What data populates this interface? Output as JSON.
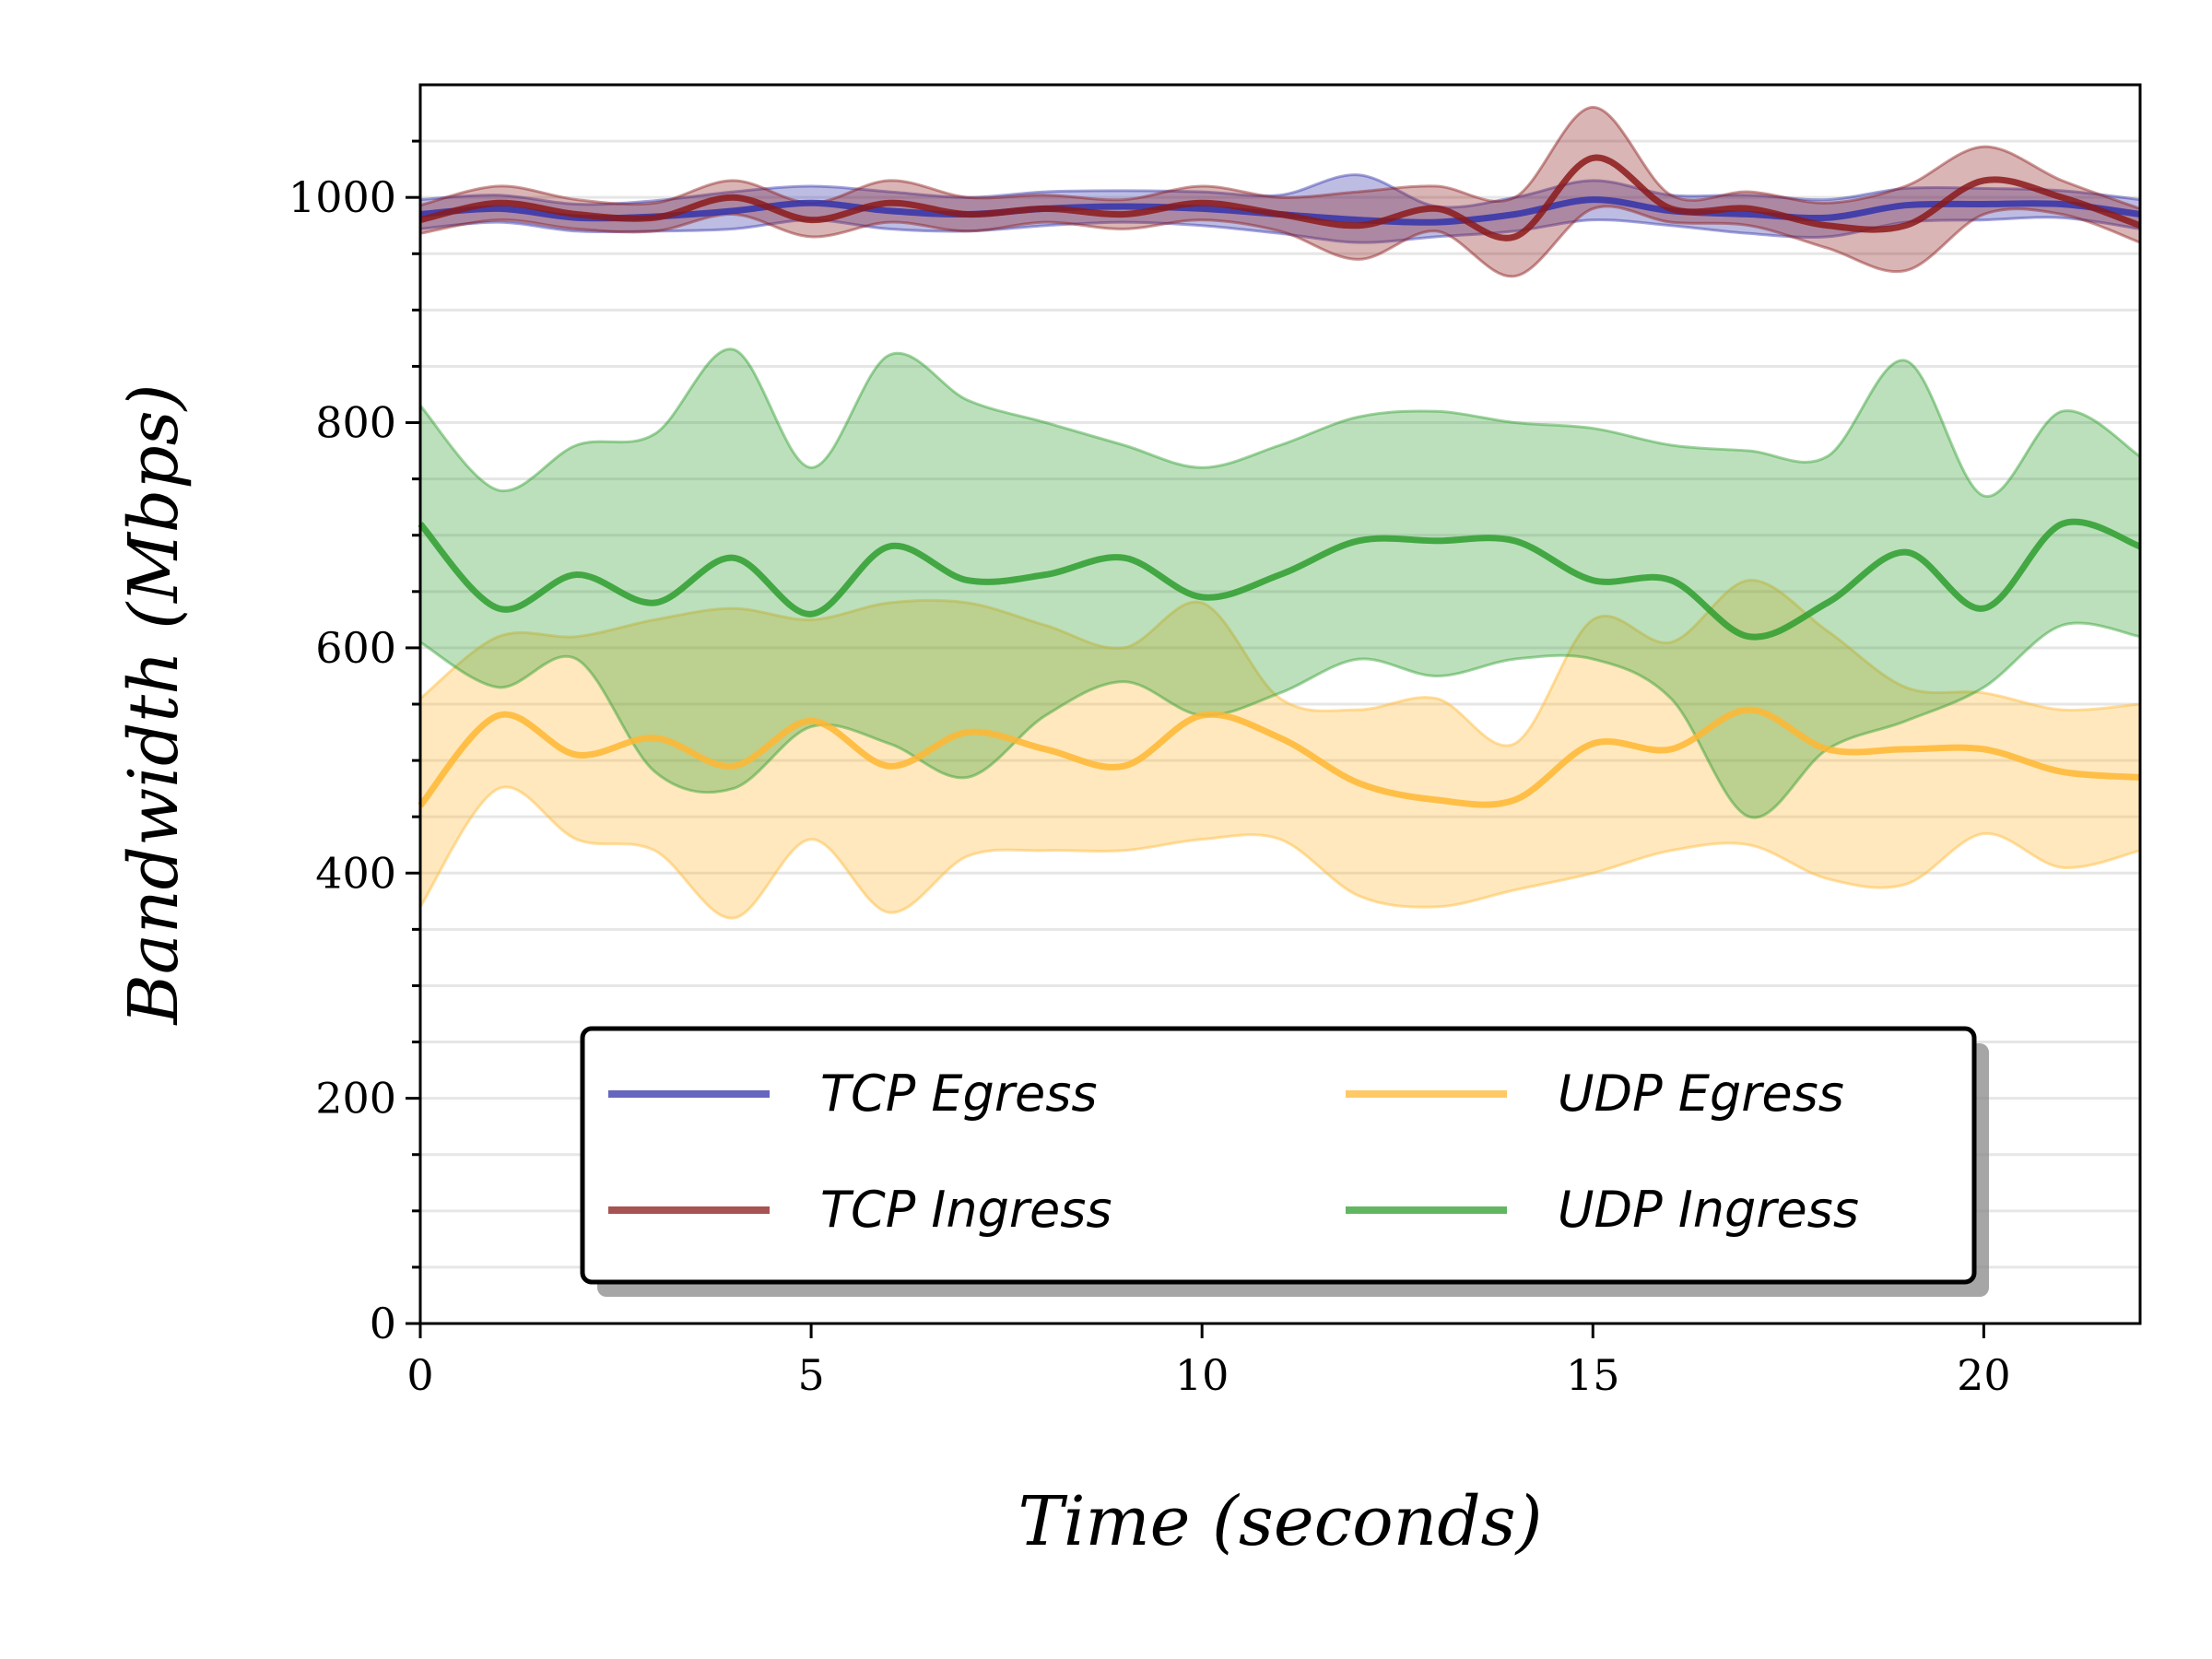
{
  "chart_data": {
    "type": "line",
    "title": "",
    "xlabel": "Time (seconds)",
    "ylabel": "Bandwidth (Mbps)",
    "xlim": [
      0,
      22
    ],
    "ylim": [
      0,
      1100
    ],
    "xticks": [
      0,
      5,
      10,
      15,
      20
    ],
    "yticks": [
      0,
      200,
      400,
      600,
      800,
      1000
    ],
    "grid": "horizontal minor grid every 50",
    "legend_position": "lower-center",
    "legend_columns": 2,
    "x": [
      0,
      1,
      2,
      3,
      4,
      5,
      6,
      7,
      8,
      9,
      10,
      11,
      12,
      13,
      14,
      15,
      16,
      17,
      18,
      19,
      20,
      21,
      22
    ],
    "series": [
      {
        "name": "TCP Egress",
        "color": "#3333aa",
        "values": [
          985,
          990,
          982,
          983,
          988,
          995,
          988,
          985,
          990,
          992,
          990,
          985,
          980,
          978,
          985,
          998,
          988,
          985,
          982,
          993,
          994,
          994,
          985
        ],
        "lower": [
          972,
          978,
          970,
          970,
          972,
          980,
          972,
          970,
          975,
          978,
          975,
          968,
          960,
          965,
          970,
          980,
          975,
          968,
          965,
          978,
          980,
          982,
          972
        ],
        "upper": [
          998,
          1002,
          994,
          997,
          1005,
          1010,
          1005,
          1000,
          1005,
          1006,
          1005,
          1002,
          1020,
          992,
          1000,
          1015,
          1002,
          1002,
          998,
          1008,
          1008,
          1006,
          998
        ]
      },
      {
        "name": "TCP Ingress",
        "color": "#8b1a1a",
        "values": [
          980,
          995,
          985,
          982,
          1000,
          980,
          995,
          985,
          990,
          985,
          995,
          985,
          975,
          990,
          965,
          1035,
          990,
          990,
          975,
          975,
          1015,
          1000,
          975
        ],
        "lower": [
          968,
          980,
          972,
          970,
          985,
          965,
          978,
          970,
          978,
          972,
          980,
          970,
          945,
          970,
          930,
          990,
          978,
          975,
          955,
          935,
          985,
          985,
          960
        ],
        "upper": [
          993,
          1010,
          998,
          995,
          1015,
          995,
          1015,
          1000,
          1002,
          998,
          1010,
          1000,
          1005,
          1010,
          1000,
          1080,
          1002,
          1005,
          995,
          1010,
          1045,
          1015,
          990
        ]
      },
      {
        "name": "UDP Egress",
        "color": "#ffb733",
        "values": [
          460,
          540,
          505,
          520,
          495,
          535,
          495,
          525,
          510,
          495,
          540,
          520,
          480,
          465,
          465,
          515,
          510,
          545,
          510,
          510,
          510,
          490,
          485
        ],
        "lower": [
          370,
          475,
          430,
          420,
          360,
          430,
          365,
          415,
          420,
          420,
          430,
          430,
          380,
          370,
          385,
          400,
          420,
          425,
          395,
          390,
          435,
          405,
          420
        ],
        "upper": [
          555,
          610,
          610,
          625,
          635,
          625,
          640,
          640,
          620,
          600,
          640,
          555,
          545,
          555,
          515,
          625,
          605,
          660,
          615,
          565,
          560,
          545,
          550
        ]
      },
      {
        "name": "UDP Ingress",
        "color": "#2e9e2e",
        "values": [
          710,
          635,
          665,
          640,
          680,
          630,
          690,
          660,
          665,
          680,
          645,
          665,
          695,
          695,
          695,
          660,
          660,
          610,
          640,
          685,
          635,
          710,
          690
        ],
        "lower": [
          605,
          565,
          590,
          490,
          475,
          530,
          515,
          485,
          540,
          570,
          540,
          560,
          590,
          575,
          590,
          590,
          555,
          450,
          510,
          535,
          565,
          620,
          610
        ],
        "upper": [
          815,
          740,
          780,
          790,
          865,
          760,
          860,
          820,
          800,
          780,
          760,
          780,
          805,
          810,
          800,
          795,
          780,
          775,
          770,
          855,
          735,
          810,
          770
        ]
      }
    ]
  }
}
